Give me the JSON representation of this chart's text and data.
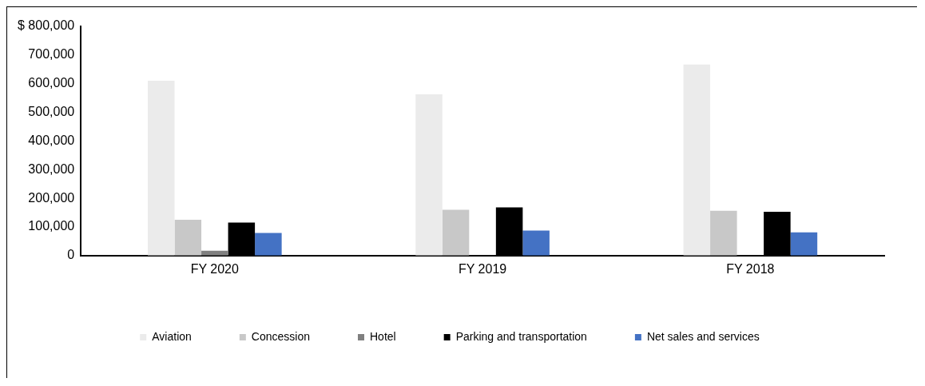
{
  "chart_data": {
    "type": "bar",
    "categories": [
      "FY 2020",
      "FY 2019",
      "FY 2018"
    ],
    "series": [
      {
        "name": "Aviation",
        "color": "#ebebeb",
        "values": [
          610000,
          563000,
          667000
        ]
      },
      {
        "name": "Concession",
        "color": "#c8c8c8",
        "values": [
          125000,
          160000,
          156000
        ]
      },
      {
        "name": "Hotel",
        "color": "#808080",
        "values": [
          17000,
          null,
          null
        ]
      },
      {
        "name": "Parking and transportation",
        "color": "#000000",
        "values": [
          115000,
          168000,
          153000
        ]
      },
      {
        "name": "Net sales and services",
        "color": "#4472c4",
        "values": [
          79000,
          87000,
          81000
        ]
      }
    ],
    "ylim": [
      0,
      800000
    ],
    "yticks": [
      0,
      {
        "value": 100000,
        "label": "100,000"
      },
      {
        "value": 200000,
        "label": "200,000"
      },
      {
        "value": 300000,
        "label": "300,000"
      },
      {
        "value": 400000,
        "label": "400,000"
      },
      {
        "value": 500000,
        "label": "500,000"
      },
      {
        "value": 600000,
        "label": "600,000"
      },
      {
        "value": 700000,
        "label": "700,000"
      },
      {
        "value": 800000,
        "label": "$ 800,000"
      }
    ],
    "grid": false,
    "legend": "bottom"
  }
}
